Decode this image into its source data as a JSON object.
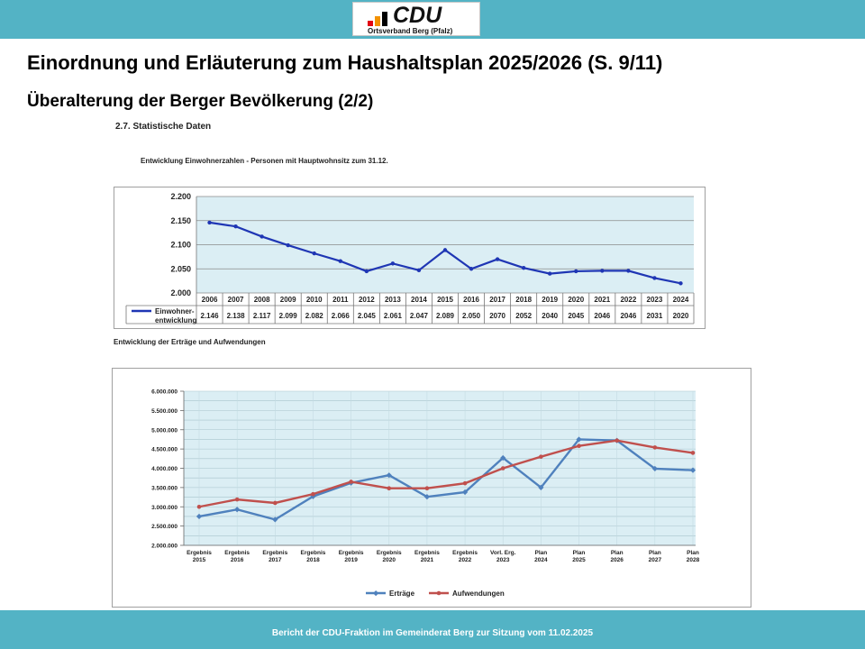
{
  "header": {
    "logo_text": "CDU",
    "logo_subtext": "Ortsverband Berg (Pfalz)",
    "logo_colors": [
      "#e30613",
      "#f39200",
      "#000000"
    ]
  },
  "title": "Einordnung und Erläuterung zum Haushaltsplan 2025/2026 (S. 9/11)",
  "subtitle": "Überalterung der Berger Bevölkerung (2/2)",
  "section_heading": "2.7.   Statistische Daten",
  "chart1_caption": "Entwicklung Einwohnerzahlen - Personen mit Hauptwohnsitz zum 31.12.",
  "chart2_caption": "Entwicklung der Erträge und Aufwendungen",
  "footer": "Bericht der CDU-Fraktion im Gemeinderat Berg zur Sitzung vom 11.02.2025",
  "colors": {
    "band": "#53b3c5",
    "series1": "#1f36b4",
    "ertraege": "#4f81bd",
    "aufwendungen": "#c0504d",
    "plot_bg": "#dbeef4"
  },
  "chart_data": [
    {
      "type": "line",
      "title": "Entwicklung Einwohnerzahlen - Personen mit Hauptwohnsitz zum 31.12.",
      "categories": [
        "2006",
        "2007",
        "2008",
        "2009",
        "2010",
        "2011",
        "2012",
        "2013",
        "2014",
        "2015",
        "2016",
        "2017",
        "2018",
        "2019",
        "2020",
        "2021",
        "2022",
        "2023",
        "2024"
      ],
      "series": [
        {
          "name": "Einwohner-entwicklung",
          "name_lines": [
            "Einwohner-",
            "entwicklung"
          ],
          "values": [
            2146,
            2138,
            2117,
            2099,
            2082,
            2066,
            2045,
            2061,
            2047,
            2089,
            2050,
            2070,
            2052,
            2040,
            2045,
            2046,
            2046,
            2031,
            2020
          ],
          "table_labels": [
            "2.146",
            "2.138",
            "2.117",
            "2.099",
            "2.082",
            "2.066",
            "2.045",
            "2.061",
            "2.047",
            "2.089",
            "2.050",
            "2070",
            "2052",
            "2040",
            "2045",
            "2046",
            "2046",
            "2031",
            "2020"
          ]
        }
      ],
      "ylim": [
        2000,
        2200
      ],
      "yticks": [
        2000,
        2050,
        2100,
        2150,
        2200
      ],
      "ytick_labels": [
        "2.000",
        "2.050",
        "2.100",
        "2.150",
        "2.200"
      ],
      "grid": true,
      "legend": "data table"
    },
    {
      "type": "line",
      "title": "Entwicklung der Erträge und Aufwendungen",
      "categories": [
        [
          "Ergebnis",
          "2015"
        ],
        [
          "Ergebnis",
          "2016"
        ],
        [
          "Ergebnis",
          "2017"
        ],
        [
          "Ergebnis",
          "2018"
        ],
        [
          "Ergebnis",
          "2019"
        ],
        [
          "Ergebnis",
          "2020"
        ],
        [
          "Ergebnis",
          "2021"
        ],
        [
          "Ergebnis",
          "2022"
        ],
        [
          "Vorl. Erg.",
          "2023"
        ],
        [
          "Plan",
          "2024"
        ],
        [
          "Plan",
          "2025"
        ],
        [
          "Plan",
          "2026"
        ],
        [
          "Plan",
          "2027"
        ],
        [
          "Plan",
          "2028"
        ]
      ],
      "series": [
        {
          "name": "Erträge",
          "values": [
            2750000,
            2930000,
            2670000,
            3270000,
            3620000,
            3820000,
            3260000,
            3380000,
            4270000,
            3500000,
            4750000,
            4720000,
            3990000,
            3950000
          ]
        },
        {
          "name": "Aufwendungen",
          "values": [
            3000000,
            3190000,
            3100000,
            3330000,
            3650000,
            3480000,
            3480000,
            3610000,
            4000000,
            4300000,
            4580000,
            4720000,
            4540000,
            4400000
          ]
        }
      ],
      "ylim": [
        2000000,
        6000000
      ],
      "yticks": [
        2000000,
        2500000,
        3000000,
        3500000,
        4000000,
        4500000,
        5000000,
        5500000,
        6000000
      ],
      "ytick_labels": [
        "2.000.000",
        "2.500.000",
        "3.000.000",
        "3.500.000",
        "4.000.000",
        "4.500.000",
        "5.000.000",
        "5.500.000",
        "6.000.000"
      ],
      "grid": true,
      "legend": "bottom"
    }
  ]
}
